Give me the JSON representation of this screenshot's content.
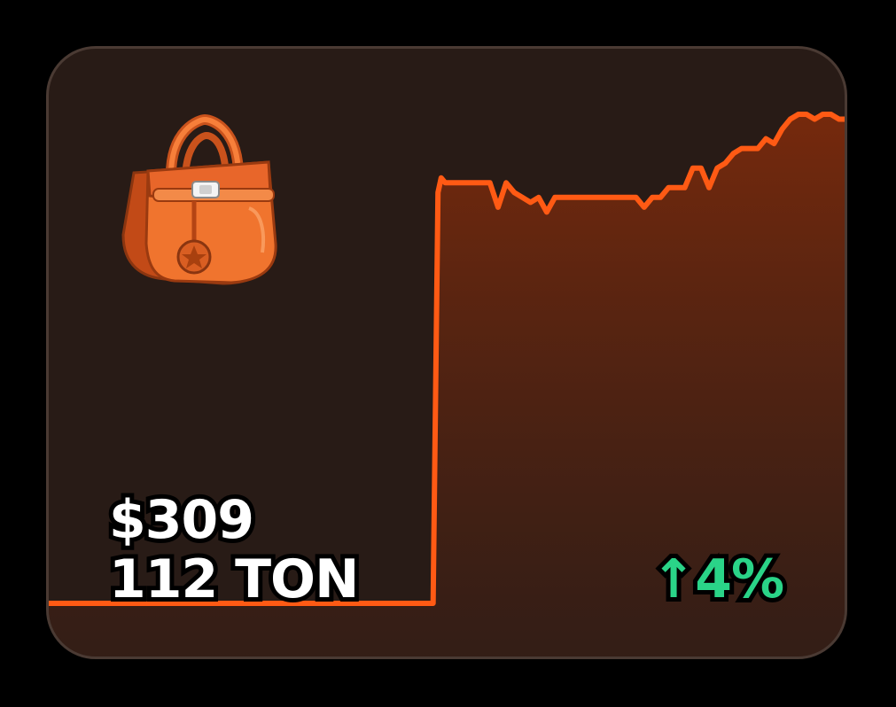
{
  "card": {
    "price_usd": "$309",
    "price_ton": "112 TON",
    "change_arrow": "↑",
    "change_value": "4%",
    "icon": "handbag-icon",
    "colors": {
      "line": "#ff5a14",
      "background": "#281b16",
      "border": "#4a3a33",
      "change": "#2ad488"
    }
  },
  "chart_data": {
    "type": "line",
    "title": "",
    "xlabel": "",
    "ylabel": "",
    "x": [
      0,
      0.48,
      0.486,
      0.49,
      0.495,
      0.5,
      0.55,
      0.56,
      0.57,
      0.58,
      0.59,
      0.6,
      0.61,
      0.62,
      0.63,
      0.64,
      0.65,
      0.66,
      0.7,
      0.73,
      0.74,
      0.75,
      0.76,
      0.77,
      0.78,
      0.79,
      0.8,
      0.81,
      0.82,
      0.83,
      0.84,
      0.85,
      0.86,
      0.87,
      0.88,
      0.89,
      0.9,
      0.91,
      0.92,
      0.93,
      0.94,
      0.95,
      0.96,
      0.97,
      0.98,
      0.99,
      1.0
    ],
    "values": [
      0,
      0,
      0.84,
      0.87,
      0.86,
      0.86,
      0.86,
      0.81,
      0.86,
      0.84,
      0.83,
      0.82,
      0.83,
      0.8,
      0.83,
      0.83,
      0.83,
      0.83,
      0.83,
      0.83,
      0.81,
      0.83,
      0.83,
      0.85,
      0.85,
      0.85,
      0.89,
      0.89,
      0.85,
      0.89,
      0.9,
      0.92,
      0.93,
      0.93,
      0.93,
      0.95,
      0.94,
      0.97,
      0.99,
      1.0,
      1.0,
      0.99,
      1.0,
      1.0,
      0.99,
      0.99,
      0.97
    ],
    "ylim": [
      0,
      1
    ],
    "grid": false,
    "legend": "none"
  }
}
